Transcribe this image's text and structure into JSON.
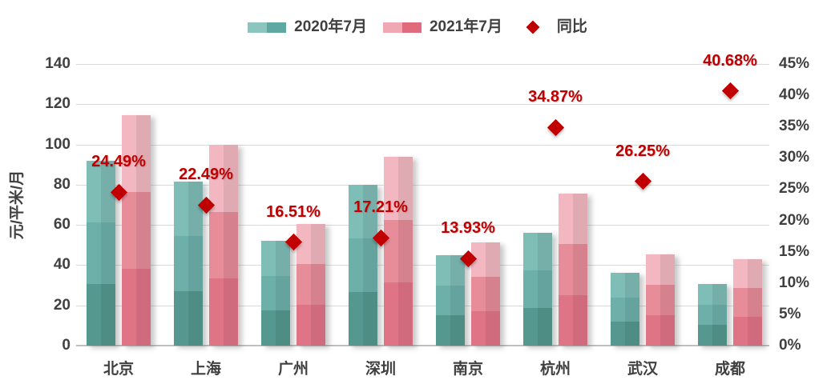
{
  "legend": {
    "series1_label": "2020年7月",
    "series2_label": "2021年7月",
    "series3_label": "同比"
  },
  "axes": {
    "left_title": "元/平米/月",
    "left_ticks": [
      "140",
      "120",
      "100",
      "80",
      "60",
      "40",
      "20",
      "0"
    ],
    "right_ticks": [
      "45%",
      "40%",
      "35%",
      "30%",
      "25%",
      "20%",
      "15%",
      "10%",
      "5%",
      "0%"
    ]
  },
  "colors": {
    "teal_segments": [
      "#7FBDB7",
      "#6DB0AA",
      "#54988F"
    ],
    "pink_segments": [
      "#F2B7C0",
      "#E78C99",
      "#DF7486"
    ],
    "legend_teal": [
      "#8CC5BF",
      "#5FA8A1"
    ],
    "legend_pink": [
      "#F0A9B3",
      "#DF6B7C"
    ],
    "diamond_red": "#C00000",
    "axis_text": "#404040",
    "gridline": "#DADADA",
    "baseline": "#C0C0C0"
  },
  "chart_data": {
    "type": "bar",
    "subtype": "grouped bars with scatter overlay on secondary axis",
    "categories": [
      "北京",
      "上海",
      "广州",
      "深圳",
      "南京",
      "杭州",
      "武汉",
      "成都"
    ],
    "series": [
      {
        "name": "2020年7月",
        "type": "bar",
        "axis": "left",
        "values": [
          92,
          81.5,
          52,
          80,
          45,
          56,
          36,
          30.5
        ]
      },
      {
        "name": "2021年7月",
        "type": "bar",
        "axis": "left",
        "values": [
          114.5,
          99.8,
          60.6,
          93.8,
          51.3,
          75.5,
          45.5,
          42.9
        ]
      },
      {
        "name": "同比",
        "type": "scatter",
        "axis": "right",
        "values": [
          24.49,
          22.49,
          16.51,
          17.21,
          13.93,
          34.87,
          26.25,
          40.68
        ],
        "labels": [
          "24.49%",
          "22.49%",
          "16.51%",
          "17.21%",
          "13.93%",
          "34.87%",
          "26.25%",
          "40.68%"
        ]
      }
    ],
    "left_axis": {
      "title": "元/平米/月",
      "min": 0,
      "max": 140,
      "step": 20
    },
    "right_axis": {
      "min": 0,
      "max": 45,
      "step": 5,
      "unit": "%"
    },
    "grid": "horizontal gridlines aligned to left axis",
    "legend_position": "top-center"
  }
}
